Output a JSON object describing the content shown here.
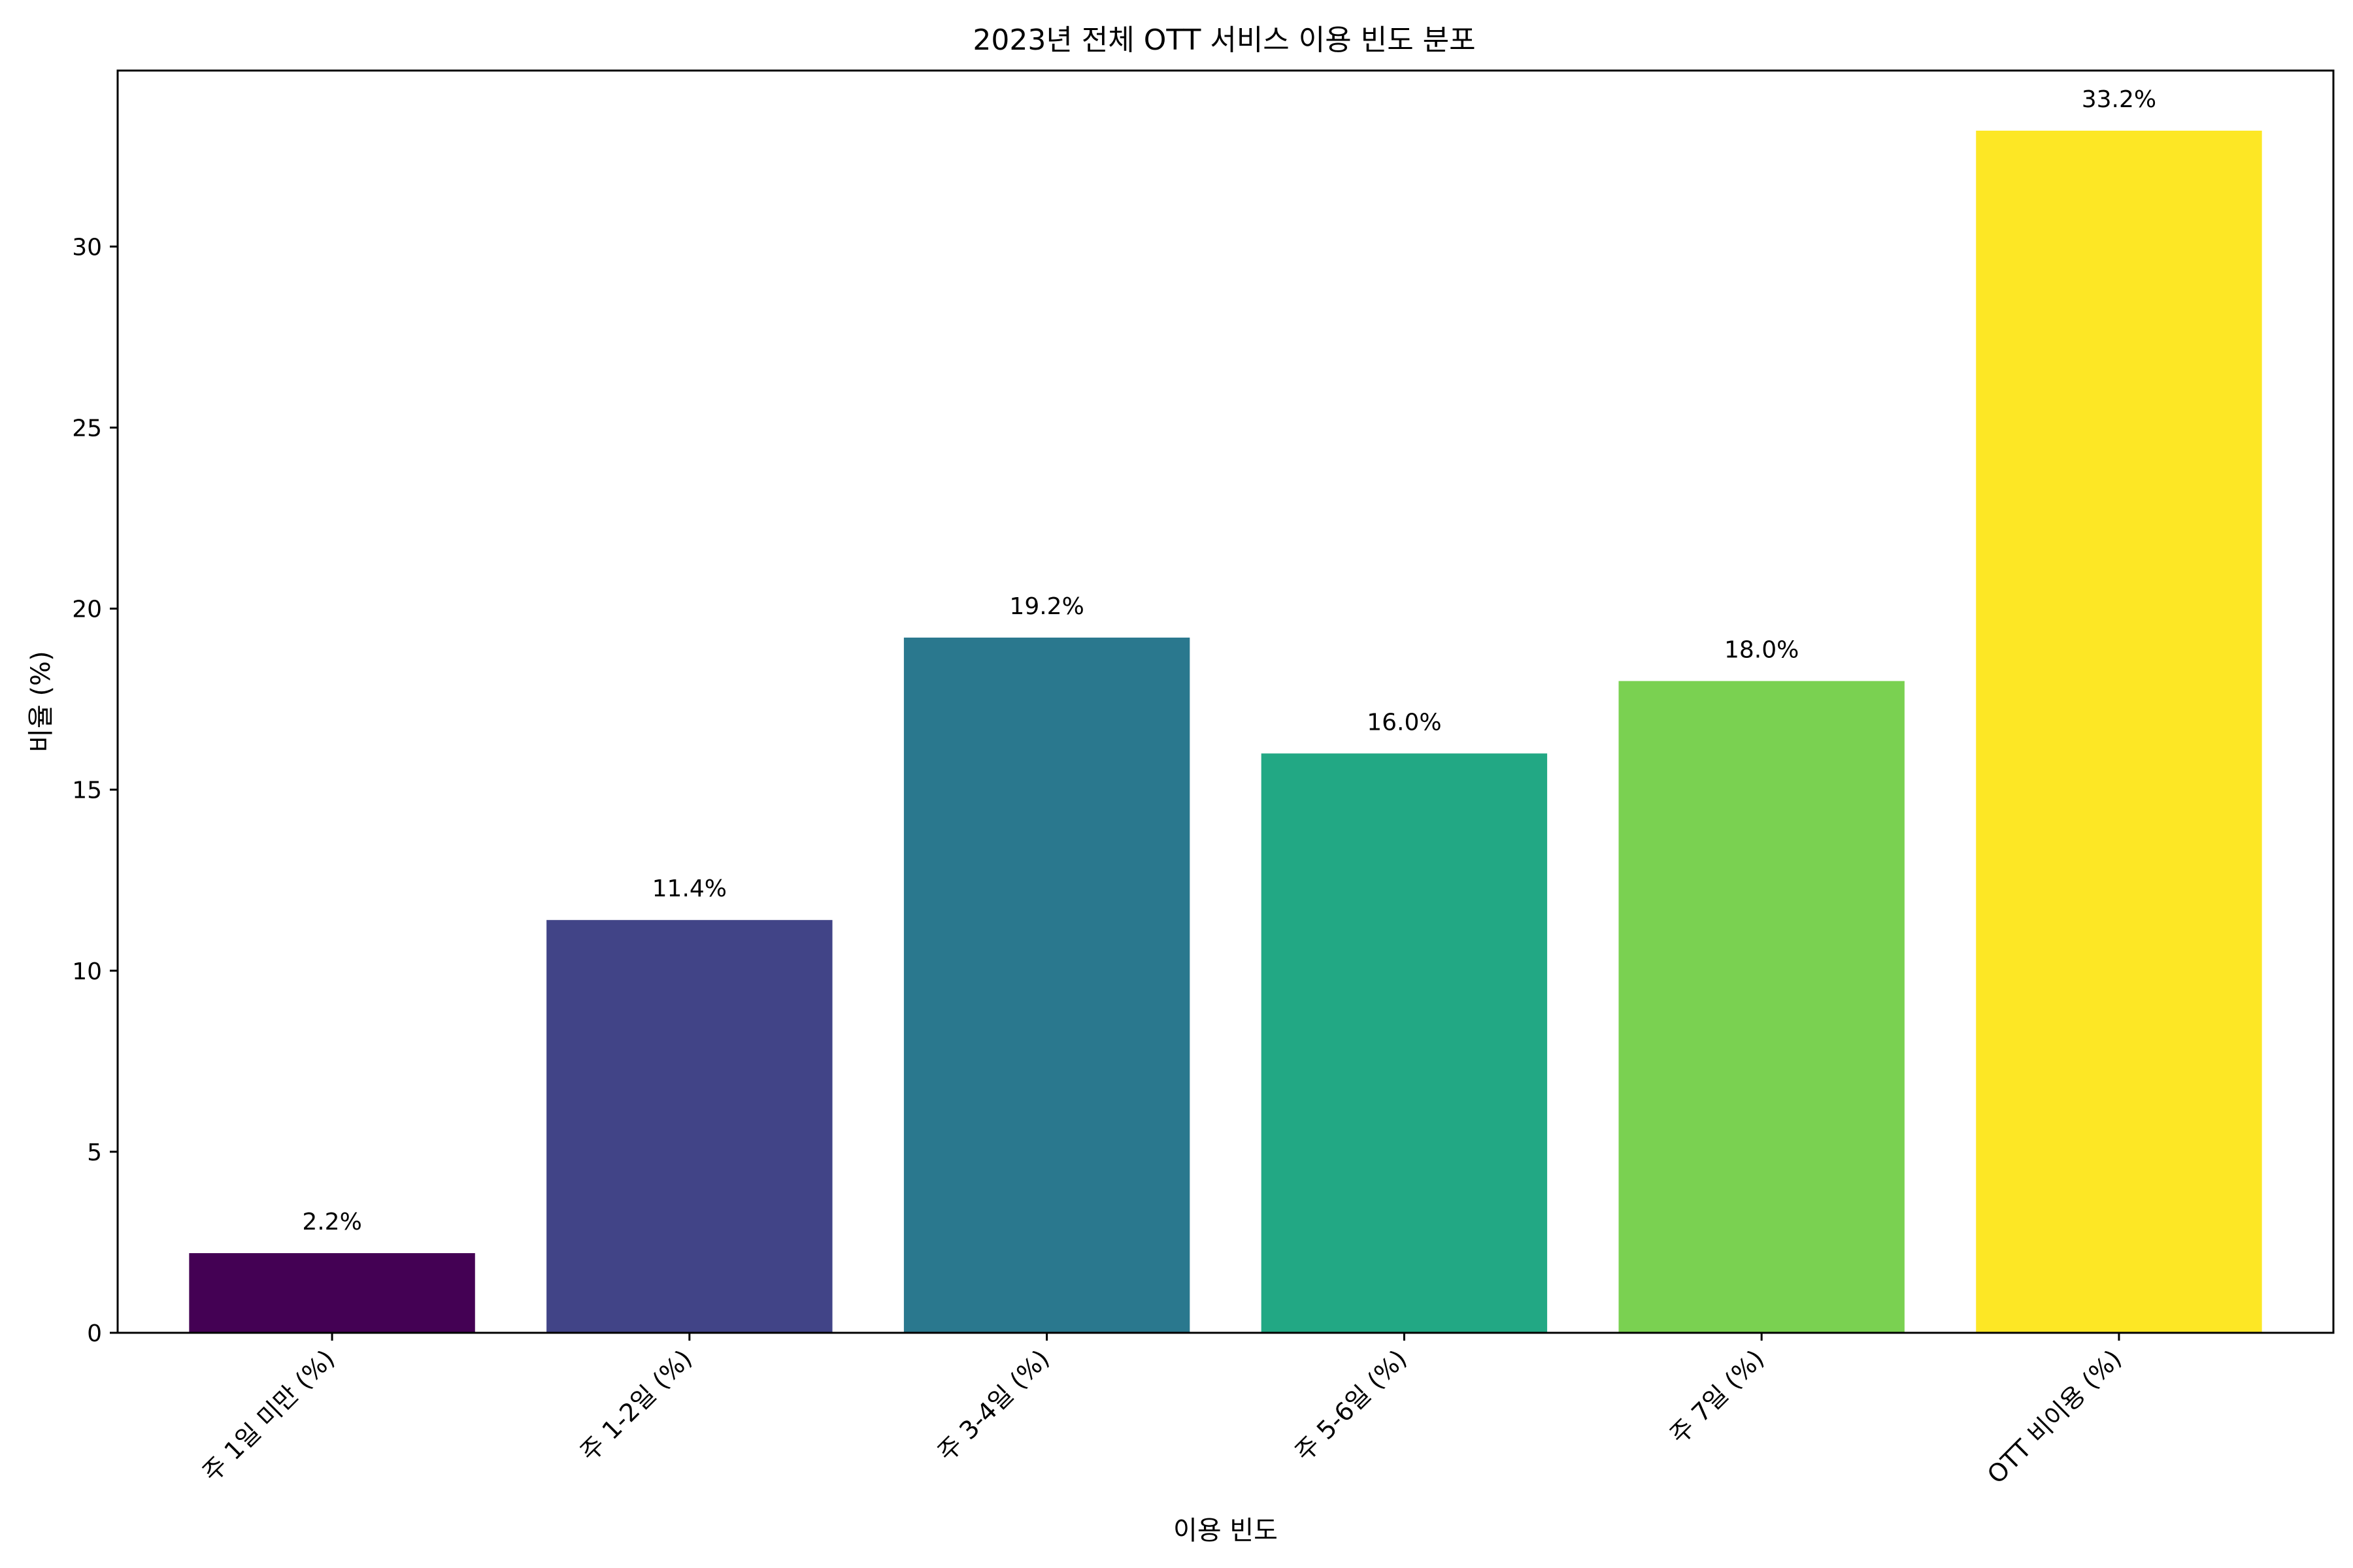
{
  "chart_data": {
    "type": "bar",
    "title": "2023년 전체 OTT 서비스 이용 빈도 분포",
    "xlabel": "이용 빈도",
    "ylabel": "비율 (%)",
    "categories": [
      "주 1일 미만 (%)",
      "주 1-2일 (%)",
      "주 3-4일 (%)",
      "주 5-6일 (%)",
      "주 7일 (%)",
      "OTT 비이용 (%)"
    ],
    "values": [
      2.2,
      11.4,
      19.2,
      16.0,
      18.0,
      33.2
    ],
    "data_labels": [
      "2.2%",
      "11.4%",
      "19.2%",
      "16.0%",
      "18.0%",
      "33.2%"
    ],
    "colors": [
      "#440154",
      "#414487",
      "#2a788e",
      "#22a884",
      "#7ad151",
      "#fde725"
    ],
    "ylim": [
      0,
      34.86
    ],
    "yticks": [
      0,
      5,
      10,
      15,
      20,
      25,
      30
    ],
    "grid": false,
    "legend": "none"
  }
}
